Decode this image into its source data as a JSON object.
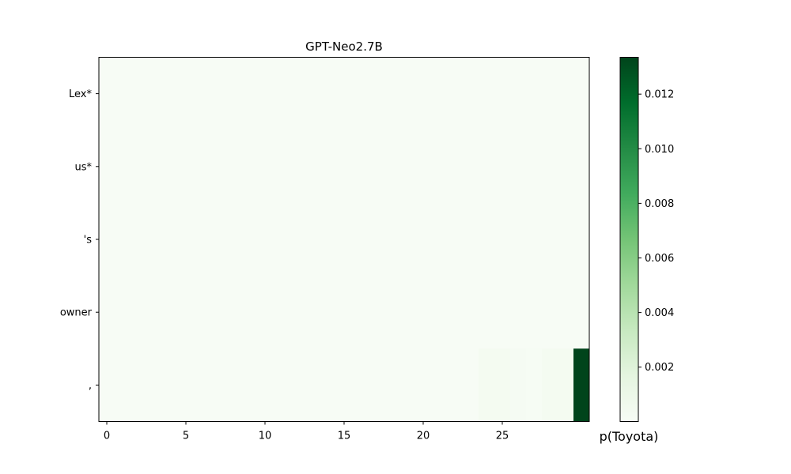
{
  "chart_data": {
    "type": "heatmap",
    "title": "GPT-Neo2.7B",
    "xlabel": "",
    "ylabel": "",
    "rows": [
      "Lex*",
      "us*",
      "'s",
      "owner",
      ","
    ],
    "x_ticks": [
      0,
      5,
      10,
      15,
      20,
      25
    ],
    "x_range": [
      0,
      31
    ],
    "colormap": "Greens",
    "colorbar": {
      "label": "p(Toyota)",
      "range": [
        1e-05,
        0.01335
      ],
      "ticks": [
        0.002,
        0.004,
        0.006,
        0.008,
        0.01,
        0.012
      ],
      "tick_labels": [
        "0.002",
        "0.004",
        "0.006",
        "0.008",
        "0.010",
        "0.012"
      ]
    },
    "values": [
      [
        1e-05,
        1e-05,
        1e-05,
        1e-05,
        1e-05,
        1e-05,
        1e-05,
        1e-05,
        1e-05,
        1e-05,
        1e-05,
        1e-05,
        1e-05,
        1e-05,
        1e-05,
        1e-05,
        1e-05,
        1e-05,
        1e-05,
        1e-05,
        1e-05,
        1e-05,
        1e-05,
        1e-05,
        1e-05,
        1e-05,
        1e-05,
        1e-05,
        1e-05,
        1e-05,
        1e-05
      ],
      [
        1e-05,
        1e-05,
        1e-05,
        1e-05,
        1e-05,
        1e-05,
        1e-05,
        1e-05,
        1e-05,
        1e-05,
        1e-05,
        1e-05,
        1e-05,
        1e-05,
        1e-05,
        1e-05,
        1e-05,
        1e-05,
        1e-05,
        1e-05,
        1e-05,
        1e-05,
        1e-05,
        1e-05,
        1e-05,
        1e-05,
        1e-05,
        1e-05,
        1e-05,
        1e-05,
        1e-05
      ],
      [
        1e-05,
        1e-05,
        1e-05,
        1e-05,
        1e-05,
        1e-05,
        1e-05,
        1e-05,
        1e-05,
        1e-05,
        1e-05,
        1e-05,
        1e-05,
        1e-05,
        1e-05,
        1e-05,
        1e-05,
        1e-05,
        1e-05,
        1e-05,
        1e-05,
        1e-05,
        1e-05,
        1e-05,
        1e-05,
        1e-05,
        1e-05,
        1e-05,
        1e-05,
        1e-05,
        1e-05
      ],
      [
        1e-05,
        1e-05,
        1e-05,
        1e-05,
        1e-05,
        1e-05,
        1e-05,
        1e-05,
        1e-05,
        1e-05,
        1e-05,
        1e-05,
        1e-05,
        1e-05,
        1e-05,
        1e-05,
        1e-05,
        1e-05,
        1e-05,
        1e-05,
        1e-05,
        1e-05,
        1e-05,
        1e-05,
        1e-05,
        1e-05,
        1e-05,
        1e-05,
        1e-05,
        1e-05,
        1e-05
      ],
      [
        1e-05,
        1e-05,
        1e-05,
        1e-05,
        1e-05,
        1e-05,
        1e-05,
        1e-05,
        1e-05,
        1e-05,
        1e-05,
        1e-05,
        1e-05,
        1e-05,
        1e-05,
        1e-05,
        1e-05,
        1e-05,
        1e-05,
        1e-05,
        1e-05,
        1e-05,
        1e-05,
        1e-05,
        0.0003,
        0.0003,
        0.0002,
        0.0001,
        0.0003,
        0.0003,
        0.01335
      ]
    ]
  }
}
